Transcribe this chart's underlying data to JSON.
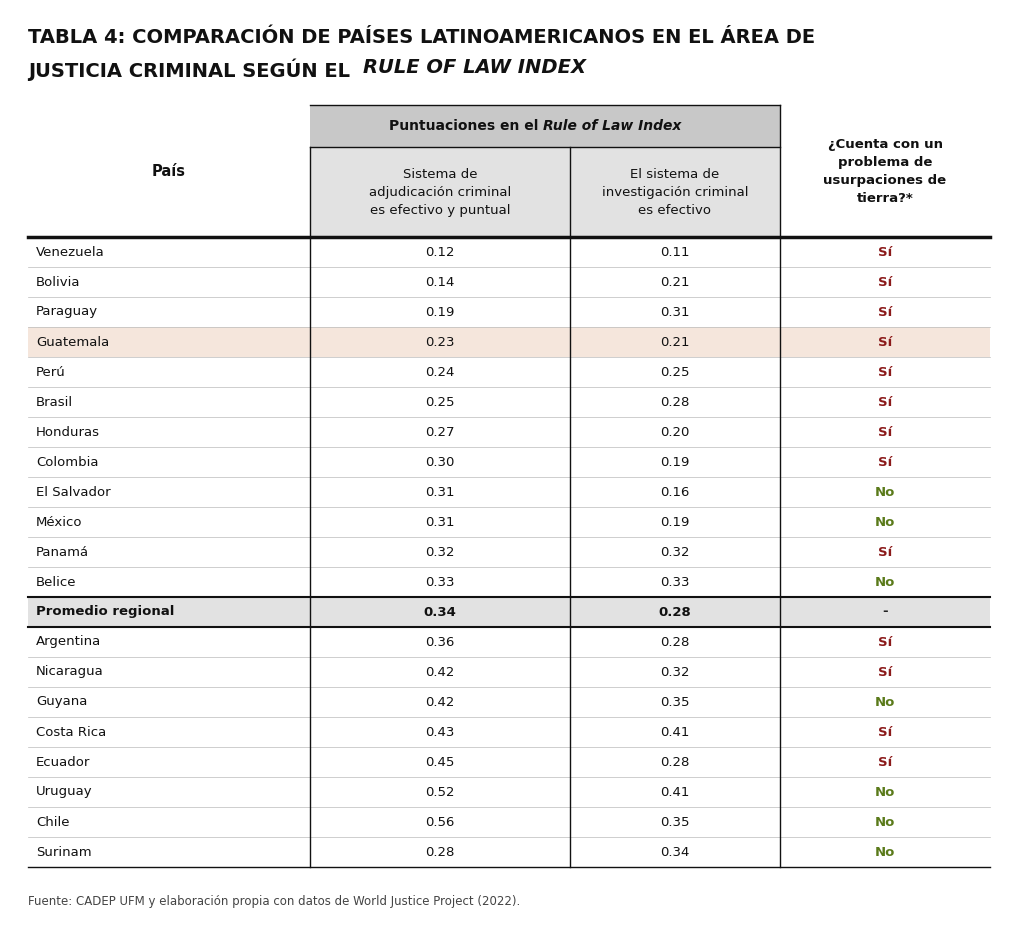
{
  "rows": [
    {
      "pais": "Venezuela",
      "col1": "0.12",
      "col2": "0.11",
      "col3": "Sí",
      "col3_color": "#8B1A1A",
      "highlight": false,
      "bold": false
    },
    {
      "pais": "Bolivia",
      "col1": "0.14",
      "col2": "0.21",
      "col3": "Sí",
      "col3_color": "#8B1A1A",
      "highlight": false,
      "bold": false
    },
    {
      "pais": "Paraguay",
      "col1": "0.19",
      "col2": "0.31",
      "col3": "Sí",
      "col3_color": "#8B1A1A",
      "highlight": false,
      "bold": false
    },
    {
      "pais": "Guatemala",
      "col1": "0.23",
      "col2": "0.21",
      "col3": "Sí",
      "col3_color": "#8B1A1A",
      "highlight": true,
      "bold": false
    },
    {
      "pais": "Perú",
      "col1": "0.24",
      "col2": "0.25",
      "col3": "Sí",
      "col3_color": "#8B1A1A",
      "highlight": false,
      "bold": false
    },
    {
      "pais": "Brasil",
      "col1": "0.25",
      "col2": "0.28",
      "col3": "Sí",
      "col3_color": "#8B1A1A",
      "highlight": false,
      "bold": false
    },
    {
      "pais": "Honduras",
      "col1": "0.27",
      "col2": "0.20",
      "col3": "Sí",
      "col3_color": "#8B1A1A",
      "highlight": false,
      "bold": false
    },
    {
      "pais": "Colombia",
      "col1": "0.30",
      "col2": "0.19",
      "col3": "Sí",
      "col3_color": "#8B1A1A",
      "highlight": false,
      "bold": false
    },
    {
      "pais": "El Salvador",
      "col1": "0.31",
      "col2": "0.16",
      "col3": "No",
      "col3_color": "#5A7A1A",
      "highlight": false,
      "bold": false
    },
    {
      "pais": "México",
      "col1": "0.31",
      "col2": "0.19",
      "col3": "No",
      "col3_color": "#5A7A1A",
      "highlight": false,
      "bold": false
    },
    {
      "pais": "Panamá",
      "col1": "0.32",
      "col2": "0.32",
      "col3": "Sí",
      "col3_color": "#8B1A1A",
      "highlight": false,
      "bold": false
    },
    {
      "pais": "Belice",
      "col1": "0.33",
      "col2": "0.33",
      "col3": "No",
      "col3_color": "#5A7A1A",
      "highlight": false,
      "bold": false
    },
    {
      "pais": "Promedio regional",
      "col1": "0.34",
      "col2": "0.28",
      "col3": "-",
      "col3_color": "#222222",
      "highlight": false,
      "bold": true
    },
    {
      "pais": "Argentina",
      "col1": "0.36",
      "col2": "0.28",
      "col3": "Sí",
      "col3_color": "#8B1A1A",
      "highlight": false,
      "bold": false
    },
    {
      "pais": "Nicaragua",
      "col1": "0.42",
      "col2": "0.32",
      "col3": "Sí",
      "col3_color": "#8B1A1A",
      "highlight": false,
      "bold": false
    },
    {
      "pais": "Guyana",
      "col1": "0.42",
      "col2": "0.35",
      "col3": "No",
      "col3_color": "#5A7A1A",
      "highlight": false,
      "bold": false
    },
    {
      "pais": "Costa Rica",
      "col1": "0.43",
      "col2": "0.41",
      "col3": "Sí",
      "col3_color": "#8B1A1A",
      "highlight": false,
      "bold": false
    },
    {
      "pais": "Ecuador",
      "col1": "0.45",
      "col2": "0.28",
      "col3": "Sí",
      "col3_color": "#8B1A1A",
      "highlight": false,
      "bold": false
    },
    {
      "pais": "Uruguay",
      "col1": "0.52",
      "col2": "0.41",
      "col3": "No",
      "col3_color": "#5A7A1A",
      "highlight": false,
      "bold": false
    },
    {
      "pais": "Chile",
      "col1": "0.56",
      "col2": "0.35",
      "col3": "No",
      "col3_color": "#5A7A1A",
      "highlight": false,
      "bold": false
    },
    {
      "pais": "Surinam",
      "col1": "0.28",
      "col2": "0.34",
      "col3": "No",
      "col3_color": "#5A7A1A",
      "highlight": false,
      "bold": false
    }
  ],
  "footer": "Fuente: CADEP UFM y elaboración propia con datos de World Justice Project (2022).",
  "bg_color": "#FFFFFF",
  "header_group_bg": "#C8C8C8",
  "header_sub_bg": "#E2E2E2",
  "highlight_color": "#F5E6DC",
  "promedio_bg": "#E2E2E2",
  "title_fs": 14,
  "header_fs": 10,
  "subheader_fs": 9.5,
  "row_fs": 9.5,
  "footer_fs": 8.5
}
